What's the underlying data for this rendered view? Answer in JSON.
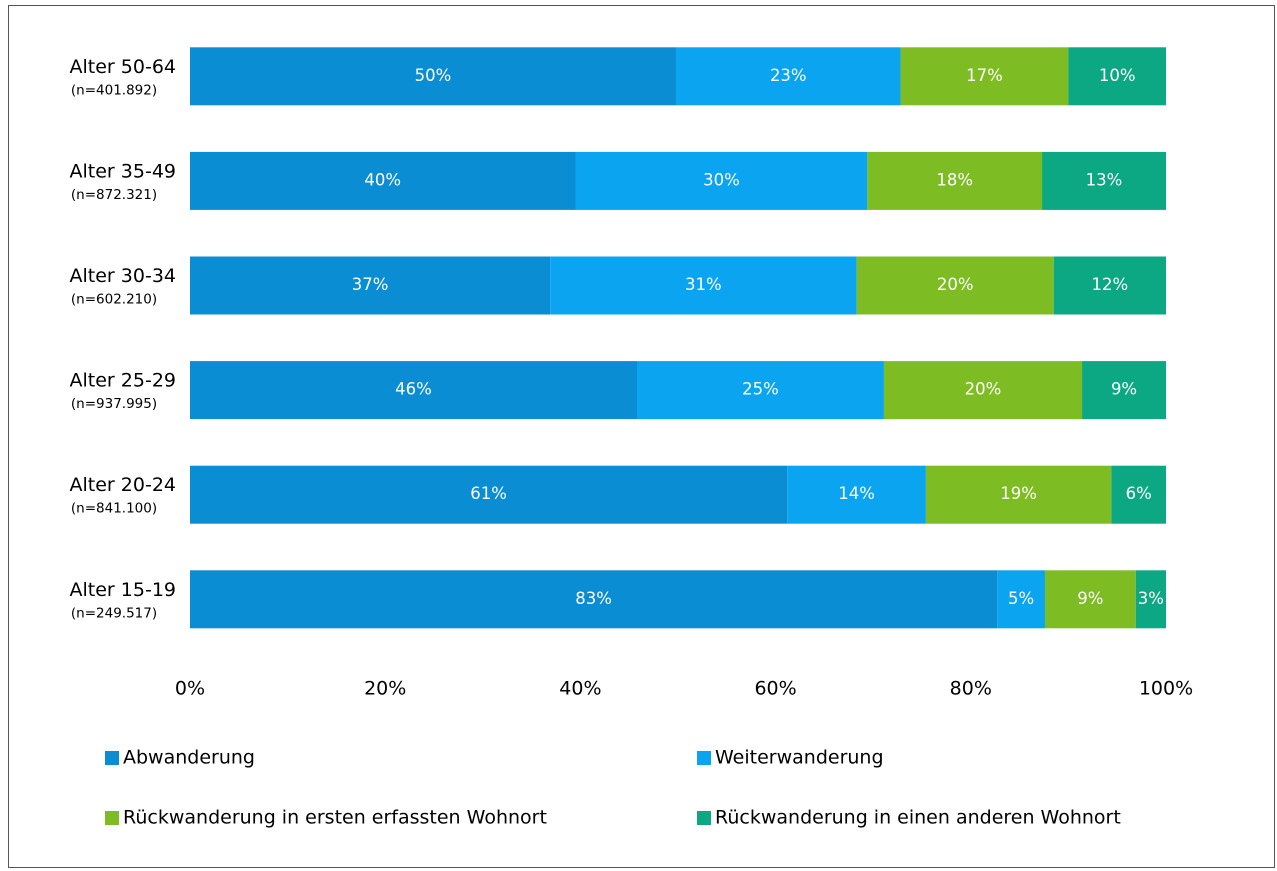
{
  "chart_data": {
    "type": "stacked-bar-horizontal",
    "categories": [
      "Alter 50-64",
      "Alter 35-49",
      "Alter 30-34",
      "Alter 25-29",
      "Alter 20-24",
      "Alter 15-19"
    ],
    "category_subtitles": [
      "(n=401.892)",
      "(n=872.321)",
      "(n=602.210)",
      "(n=937.995)",
      "(n=841.100)",
      "(n=249.517)"
    ],
    "series": [
      {
        "name": "Abwanderung",
        "color": "#0b8dd3",
        "values": [
          49.8,
          39.5,
          36.9,
          45.8,
          61.2,
          82.7
        ],
        "value_labels": [
          "50%",
          "40%",
          "37%",
          "46%",
          "61%",
          "83%"
        ]
      },
      {
        "name": "Weiterwanderung",
        "color": "#0aa4f0",
        "values": [
          23.0,
          29.9,
          31.4,
          25.3,
          14.2,
          4.9
        ],
        "value_labels": [
          "23%",
          "30%",
          "31%",
          "25%",
          "14%",
          "5%"
        ]
      },
      {
        "name": "Rückwanderung in ersten erfassten Wohnort",
        "color": "#7dbd23",
        "values": [
          17.2,
          17.9,
          20.2,
          20.3,
          19.0,
          9.3
        ],
        "value_labels": [
          "17%",
          "18%",
          "20%",
          "20%",
          "19%",
          "9%"
        ]
      },
      {
        "name": "Rückwanderung in einen anderen Wohnort",
        "color": "#0ca783",
        "values": [
          10.0,
          12.7,
          11.5,
          8.6,
          5.6,
          3.1
        ],
        "value_labels": [
          "10%",
          "13%",
          "12%",
          "9%",
          "6%",
          "3%"
        ]
      }
    ],
    "xlim": [
      0,
      100
    ],
    "xticks": [
      {
        "value": 0,
        "label": "0%"
      },
      {
        "value": 20,
        "label": "20%"
      },
      {
        "value": 40,
        "label": "40%"
      },
      {
        "value": 60,
        "label": "60%"
      },
      {
        "value": 80,
        "label": "80%"
      },
      {
        "value": 100,
        "label": "100%"
      }
    ],
    "legend": "bottom"
  }
}
